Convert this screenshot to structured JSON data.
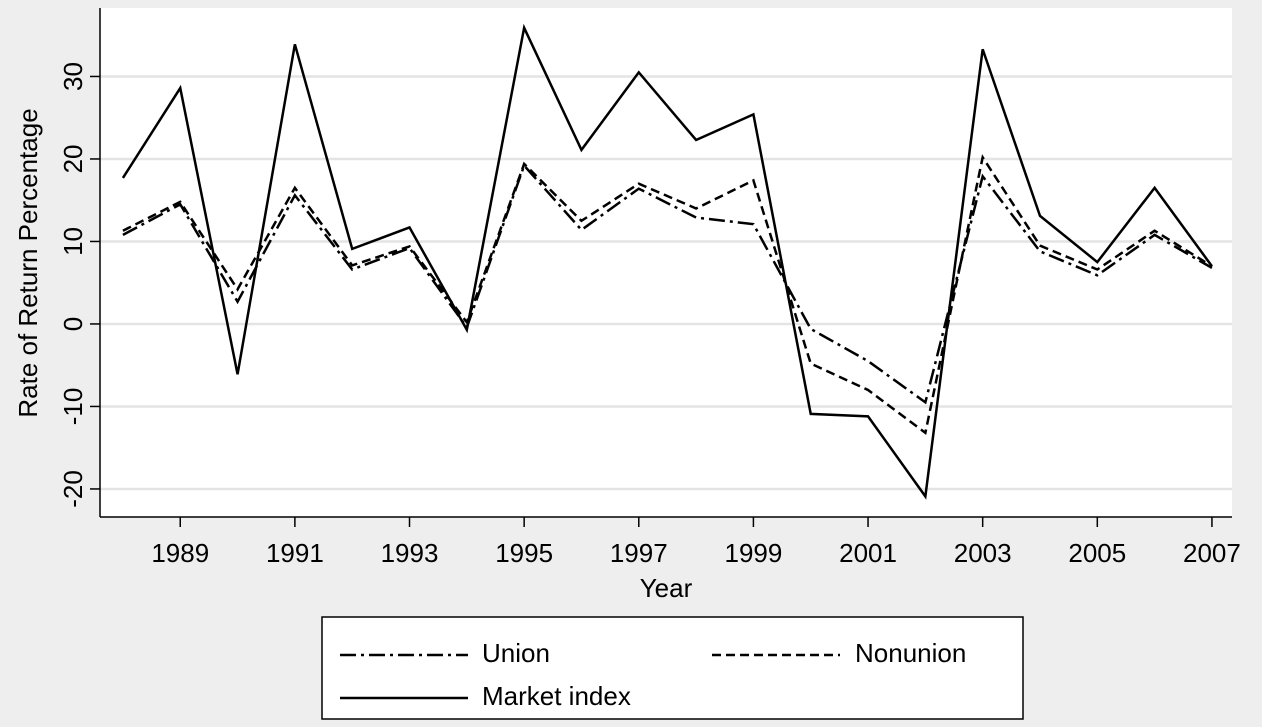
{
  "chart_data": {
    "type": "line",
    "x_label": "Year",
    "y_label": "Rate of Return Percentage",
    "x": [
      1988,
      1989,
      1990,
      1991,
      1992,
      1993,
      1994,
      1995,
      1996,
      1997,
      1998,
      1999,
      2000,
      2001,
      2002,
      2003,
      2004,
      2005,
      2006,
      2007
    ],
    "series": [
      {
        "name": "Union",
        "color": "#000000",
        "style": "dashdot",
        "values": [
          10.8,
          14.5,
          2.7,
          15.6,
          6.6,
          9.2,
          -0.4,
          19.2,
          11.4,
          16.4,
          12.9,
          12.1,
          -0.6,
          -4.5,
          -9.5,
          17.9,
          8.8,
          5.9,
          10.8,
          6.8
        ]
      },
      {
        "name": "Nonunion",
        "color": "#000000",
        "style": "dash",
        "values": [
          11.3,
          14.8,
          4.2,
          16.5,
          7.1,
          9.4,
          0.2,
          19.4,
          12.5,
          17.0,
          14.0,
          17.4,
          -4.8,
          -8.0,
          -13.2,
          20.2,
          9.5,
          6.6,
          11.3,
          7.0
        ]
      },
      {
        "name": "Market index",
        "color": "#000000",
        "style": "solid",
        "values": [
          17.7,
          28.6,
          -6.1,
          33.9,
          9.1,
          11.7,
          -0.7,
          35.9,
          21.1,
          30.5,
          22.3,
          25.4,
          -10.9,
          -11.2,
          -20.9,
          33.3,
          13.1,
          7.5,
          16.5,
          7.0
        ]
      }
    ],
    "xlim": [
      1987.6,
      2007.35
    ],
    "xticks": [
      1989,
      1991,
      1993,
      1995,
      1997,
      1999,
      2001,
      2003,
      2005,
      2007
    ],
    "ylim": [
      -23.4,
      38.3
    ],
    "yticks": [
      -20,
      -10,
      0,
      10,
      20,
      30
    ],
    "grid": true,
    "legend": "bottom"
  }
}
